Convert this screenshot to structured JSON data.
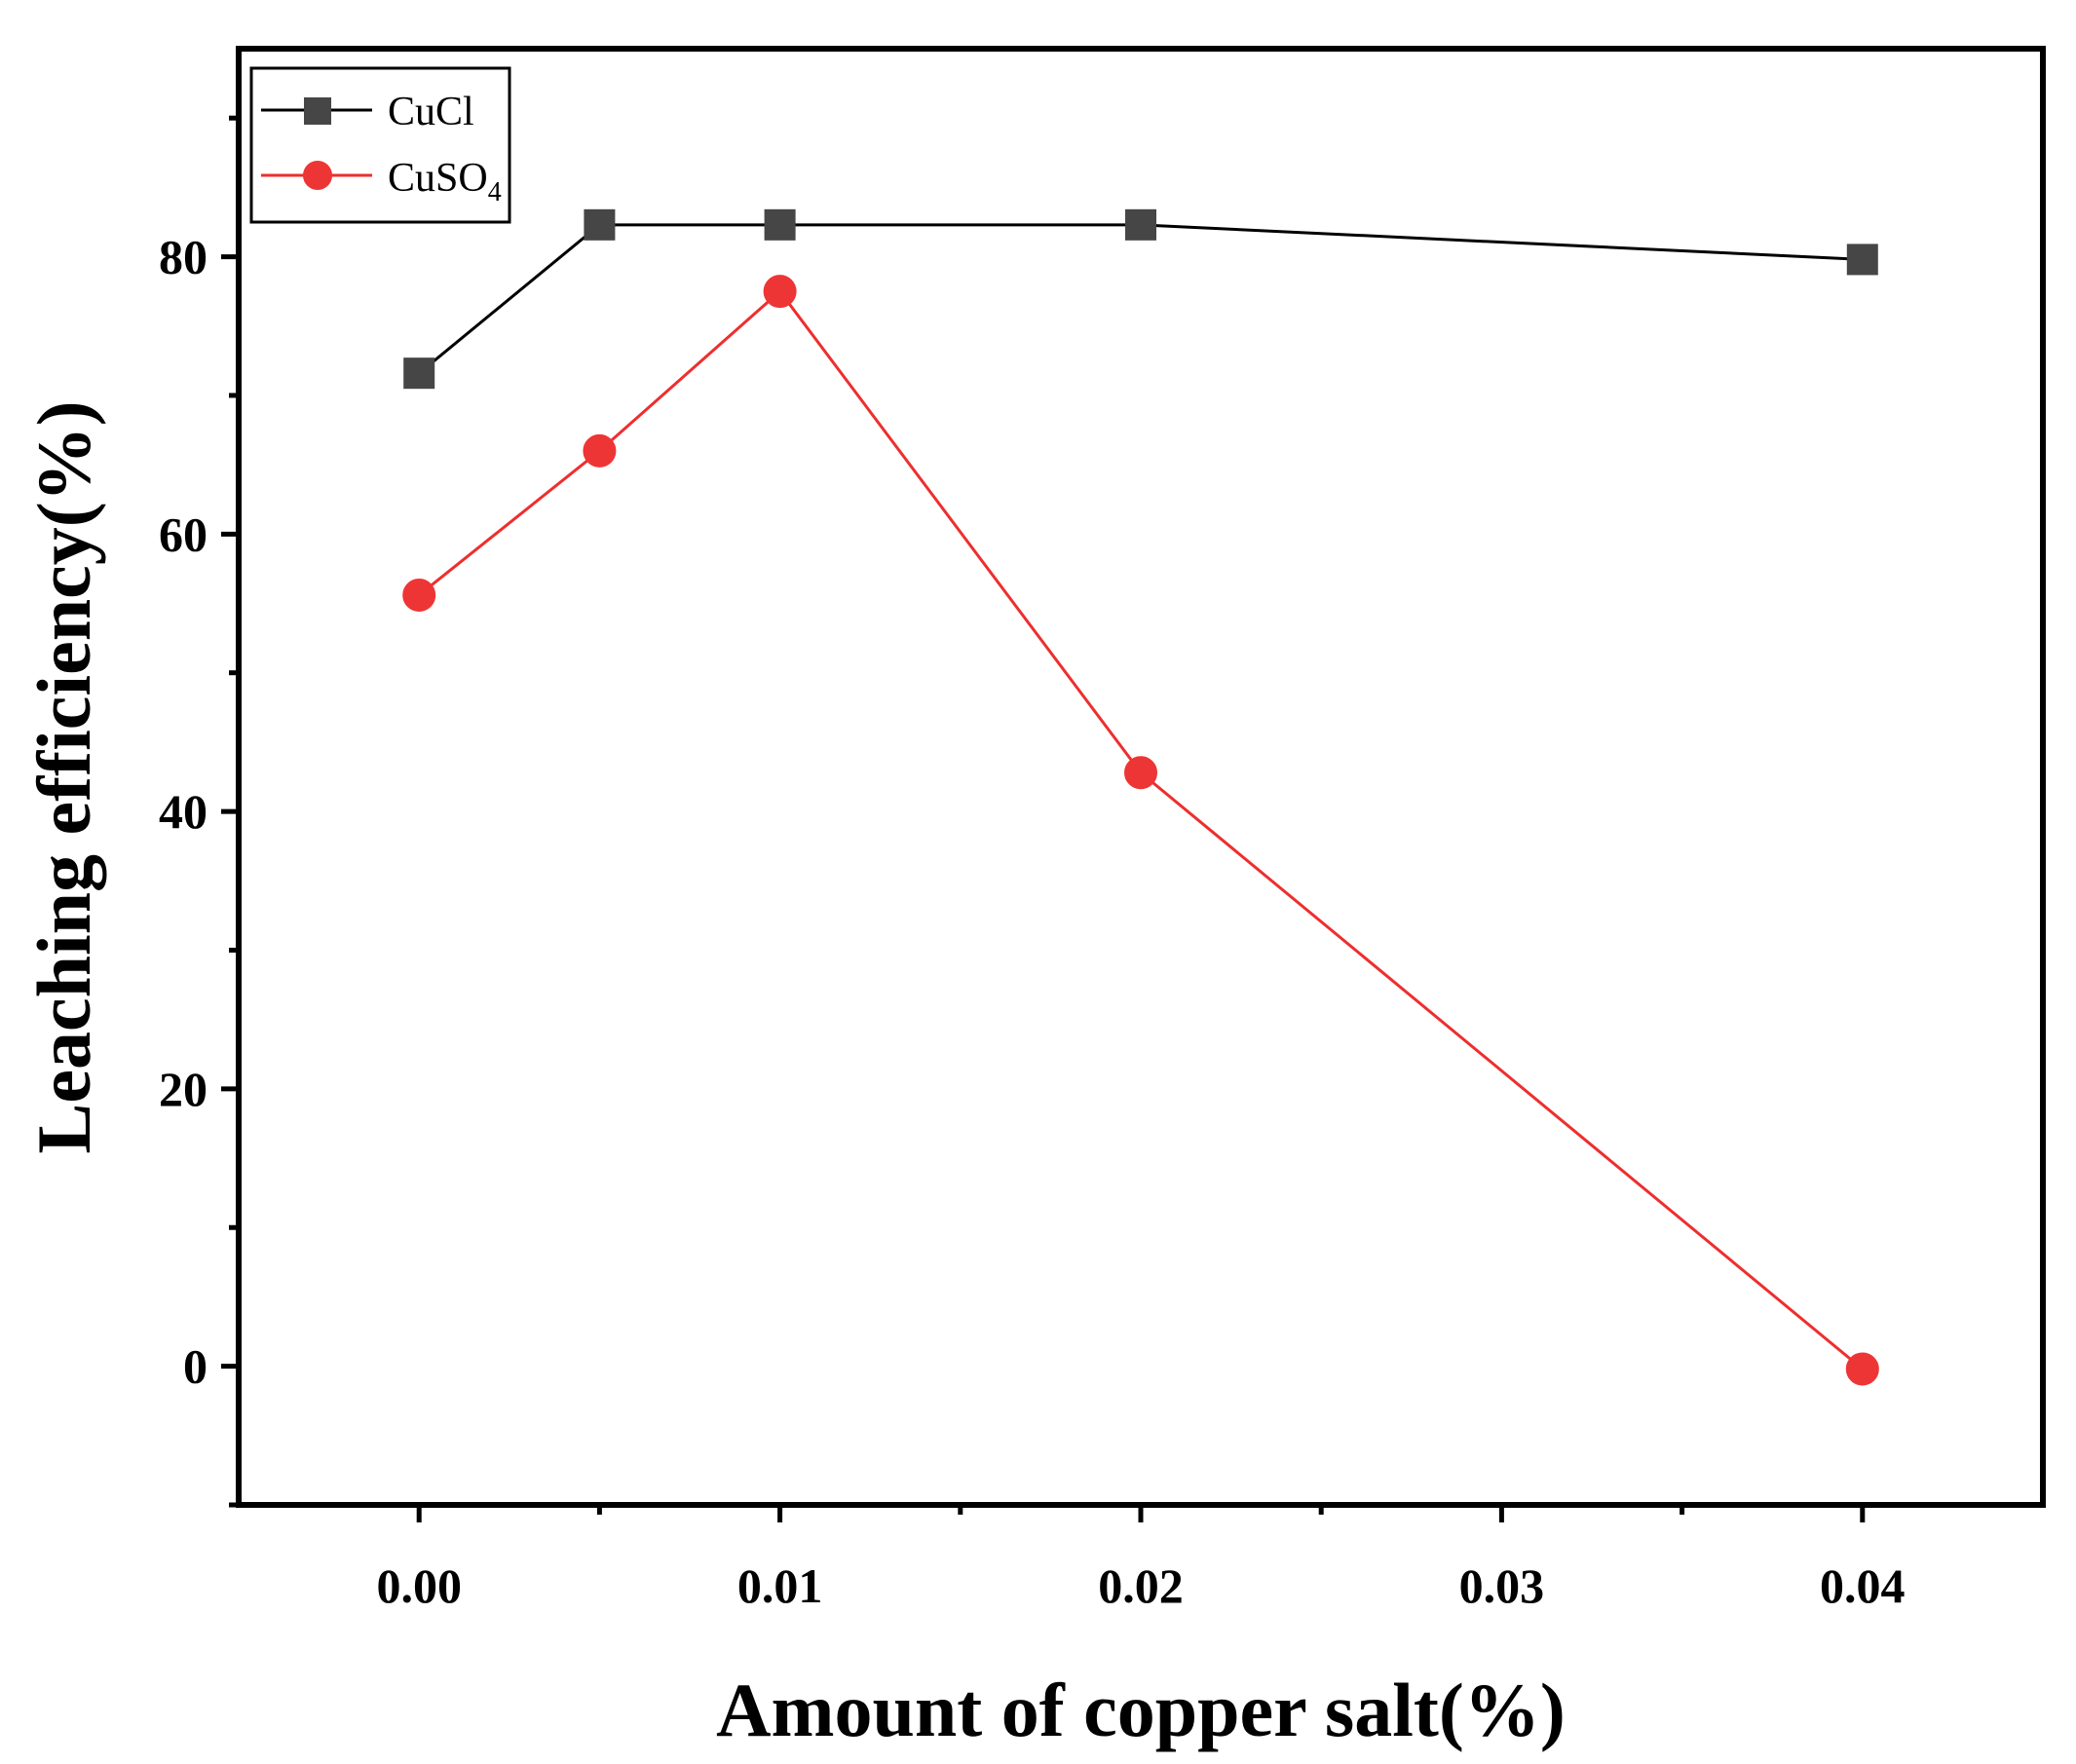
{
  "chart_data": {
    "type": "line",
    "title": "",
    "xlabel": "Amount of copper salt(%)",
    "ylabel": "Leaching efficiency(%)",
    "xlim": [
      -0.005,
      0.045
    ],
    "ylim": [
      -10,
      95
    ],
    "x_ticks": [
      0.0,
      0.01,
      0.02,
      0.03,
      0.04
    ],
    "x_tick_labels": [
      "0.00",
      "0.01",
      "0.02",
      "0.03",
      "0.04"
    ],
    "x_minor_ticks": [
      0.005,
      0.015,
      0.025,
      0.035
    ],
    "y_ticks": [
      0,
      20,
      40,
      60,
      80
    ],
    "y_tick_labels": [
      "0",
      "20",
      "40",
      "60",
      "80"
    ],
    "y_minor_ticks": [
      -10,
      10,
      30,
      50,
      70,
      90
    ],
    "grid": false,
    "legend_position": "top-left",
    "series": [
      {
        "name": "CuCl",
        "legend_base": "CuCl",
        "legend_sub": "",
        "color": "#464646",
        "line_color": "#000000",
        "marker": "square",
        "x": [
          0.0,
          0.005,
          0.01,
          0.02,
          0.04
        ],
        "y": [
          71.6,
          82.3,
          82.3,
          82.3,
          79.8
        ]
      },
      {
        "name": "CuSO4",
        "legend_base": "CuSO",
        "legend_sub": "4",
        "color": "#ee3535",
        "line_color": "#ee2e2e",
        "marker": "circle",
        "x": [
          0.0,
          0.005,
          0.01,
          0.02,
          0.04
        ],
        "y": [
          55.6,
          66.0,
          77.5,
          42.8,
          -0.2
        ]
      }
    ]
  }
}
